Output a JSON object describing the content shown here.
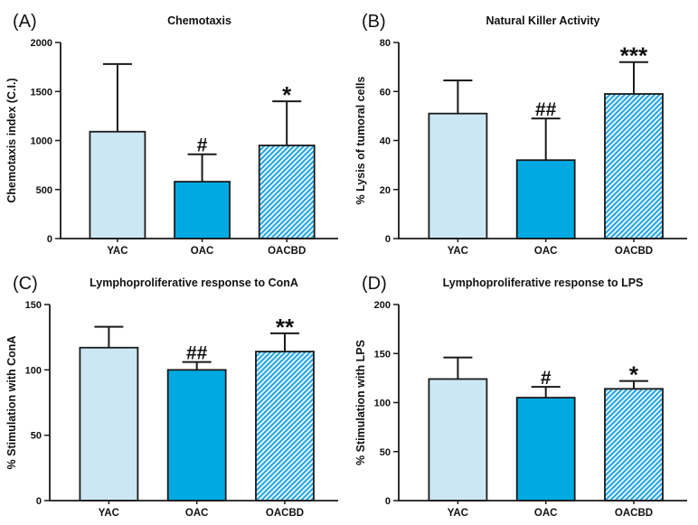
{
  "figure": {
    "background": "#ffffff",
    "text_color": "#111111",
    "axis_color": "#1a1a1a",
    "bar_outline": "#1a1a1a",
    "bar_fill_light": "#cbe7f4",
    "bar_fill_solid": "#00a9e2",
    "bar_fill_hatch": "#2da9e4",
    "hatch_line_color": "#ffffff"
  },
  "chart_data": [
    {
      "type": "bar",
      "panel_label": "(A)",
      "title": "Chemotaxis",
      "ylabel": "Chemotaxis index (C.I.)",
      "xlabel": "",
      "categories": [
        "YAC",
        "OAC",
        "OACBD"
      ],
      "values": [
        1090,
        580,
        950
      ],
      "errors_up": [
        690,
        280,
        450
      ],
      "annotations": [
        "",
        "#",
        "*"
      ],
      "ylim": [
        0,
        2000
      ],
      "yticks": [
        0,
        500,
        1000,
        1500,
        2000
      ],
      "styles": [
        "light",
        "solid",
        "hatched"
      ],
      "grid": false,
      "legend": false
    },
    {
      "type": "bar",
      "panel_label": "(B)",
      "title": "Natural Killer Activity",
      "ylabel": "% Lysis of tumoral cells",
      "xlabel": "",
      "categories": [
        "YAC",
        "OAC",
        "OACBD"
      ],
      "values": [
        51,
        32,
        59
      ],
      "errors_up": [
        13.5,
        17,
        13
      ],
      "annotations": [
        "",
        "##",
        "***"
      ],
      "ylim": [
        0,
        80
      ],
      "yticks": [
        0,
        20,
        40,
        60,
        80
      ],
      "styles": [
        "light",
        "solid",
        "hatched"
      ],
      "grid": false,
      "legend": false
    },
    {
      "type": "bar",
      "panel_label": "(C)",
      "title": "Lymphoproliferative response to ConA",
      "ylabel": "% Stimulation with ConA",
      "xlabel": "",
      "categories": [
        "YAC",
        "OAC",
        "OACBD"
      ],
      "values": [
        117,
        100,
        114
      ],
      "errors_up": [
        16,
        6,
        14
      ],
      "annotations": [
        "",
        "##",
        "**"
      ],
      "ylim": [
        0,
        150
      ],
      "yticks": [
        0,
        50,
        100,
        150
      ],
      "styles": [
        "light",
        "solid",
        "hatched"
      ],
      "grid": false,
      "legend": false
    },
    {
      "type": "bar",
      "panel_label": "(D)",
      "title": "Lymphoproliferative response to LPS",
      "ylabel": "% Stimulation with LPS",
      "xlabel": "",
      "categories": [
        "YAC",
        "OAC",
        "OACBD"
      ],
      "values": [
        124,
        105,
        114
      ],
      "errors_up": [
        22,
        11,
        8
      ],
      "annotations": [
        "",
        "#",
        "*"
      ],
      "ylim": [
        0,
        200
      ],
      "yticks": [
        0,
        50,
        100,
        150,
        200
      ],
      "styles": [
        "light",
        "solid",
        "hatched"
      ],
      "grid": false,
      "legend": false
    }
  ]
}
